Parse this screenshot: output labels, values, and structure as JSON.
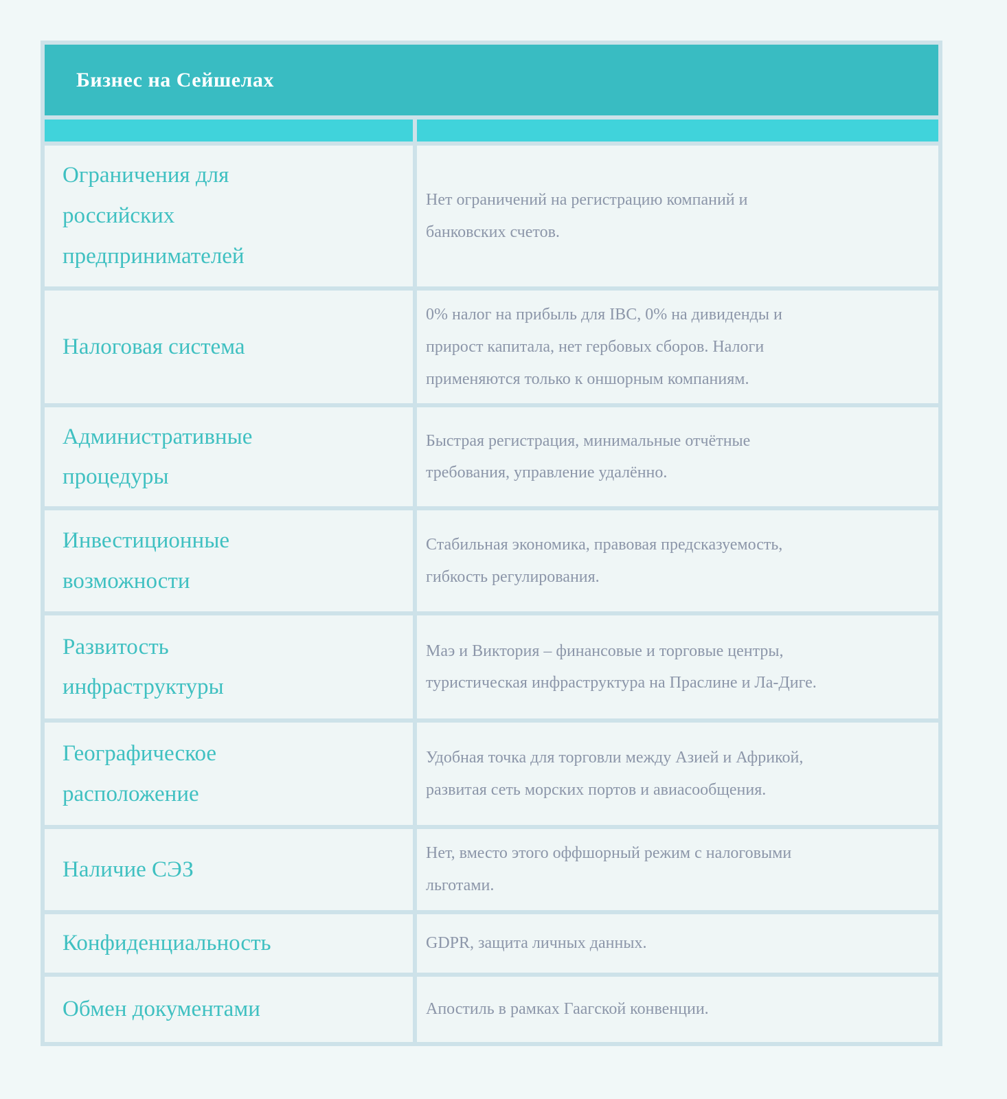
{
  "table": {
    "title": "Бизнес на Сейшелах",
    "colors": {
      "header_teal": "#39bcc2",
      "subheader_teal": "#40d3db",
      "label_teal": "#3fc0c1",
      "body_text_gray": "#8c96a9",
      "grid_border": "#cde2e9",
      "cell_background": "#eff6f6",
      "page_background": "#f1f8f8",
      "title_text": "#ffffff"
    },
    "rows": [
      {
        "label": "Ограничения для\nроссийских\nпредпринимателей",
        "value": "Нет ограничений на регистрацию компаний и\nбанковских счетов."
      },
      {
        "label": "Налоговая система",
        "value": "0% налог на прибыль для IBC, 0% на дивиденды и\nприрост капитала, нет гербовых сборов. Налоги\nприменяются только к оншорным компаниям."
      },
      {
        "label": "Административные\nпроцедуры",
        "value": "Быстрая регистрация, минимальные отчётные\nтребования, управление удалённо."
      },
      {
        "label": "Инвестиционные\nвозможности",
        "value": "Стабильная экономика, правовая предсказуемость,\nгибкость регулирования."
      },
      {
        "label": "Развитость\nинфраструктуры",
        "value": "Маэ и Виктория – финансовые и торговые центры,\nтуристическая инфраструктура на Праслине и Ла-Диге."
      },
      {
        "label": "Географическое\nрасположение",
        "value": "Удобная точка для торговли между Азией и Африкой,\nразвитая сеть морских портов и авиасообщения."
      },
      {
        "label": "Наличие СЭЗ",
        "value": "Нет, вместо этого оффшорный режим с налоговыми\nльготами."
      },
      {
        "label": "Конфиденциальность",
        "value": "GDPR, защита личных данных."
      },
      {
        "label": "Обмен документами",
        "value": "Апостиль в рамках Гаагской конвенции."
      }
    ]
  }
}
